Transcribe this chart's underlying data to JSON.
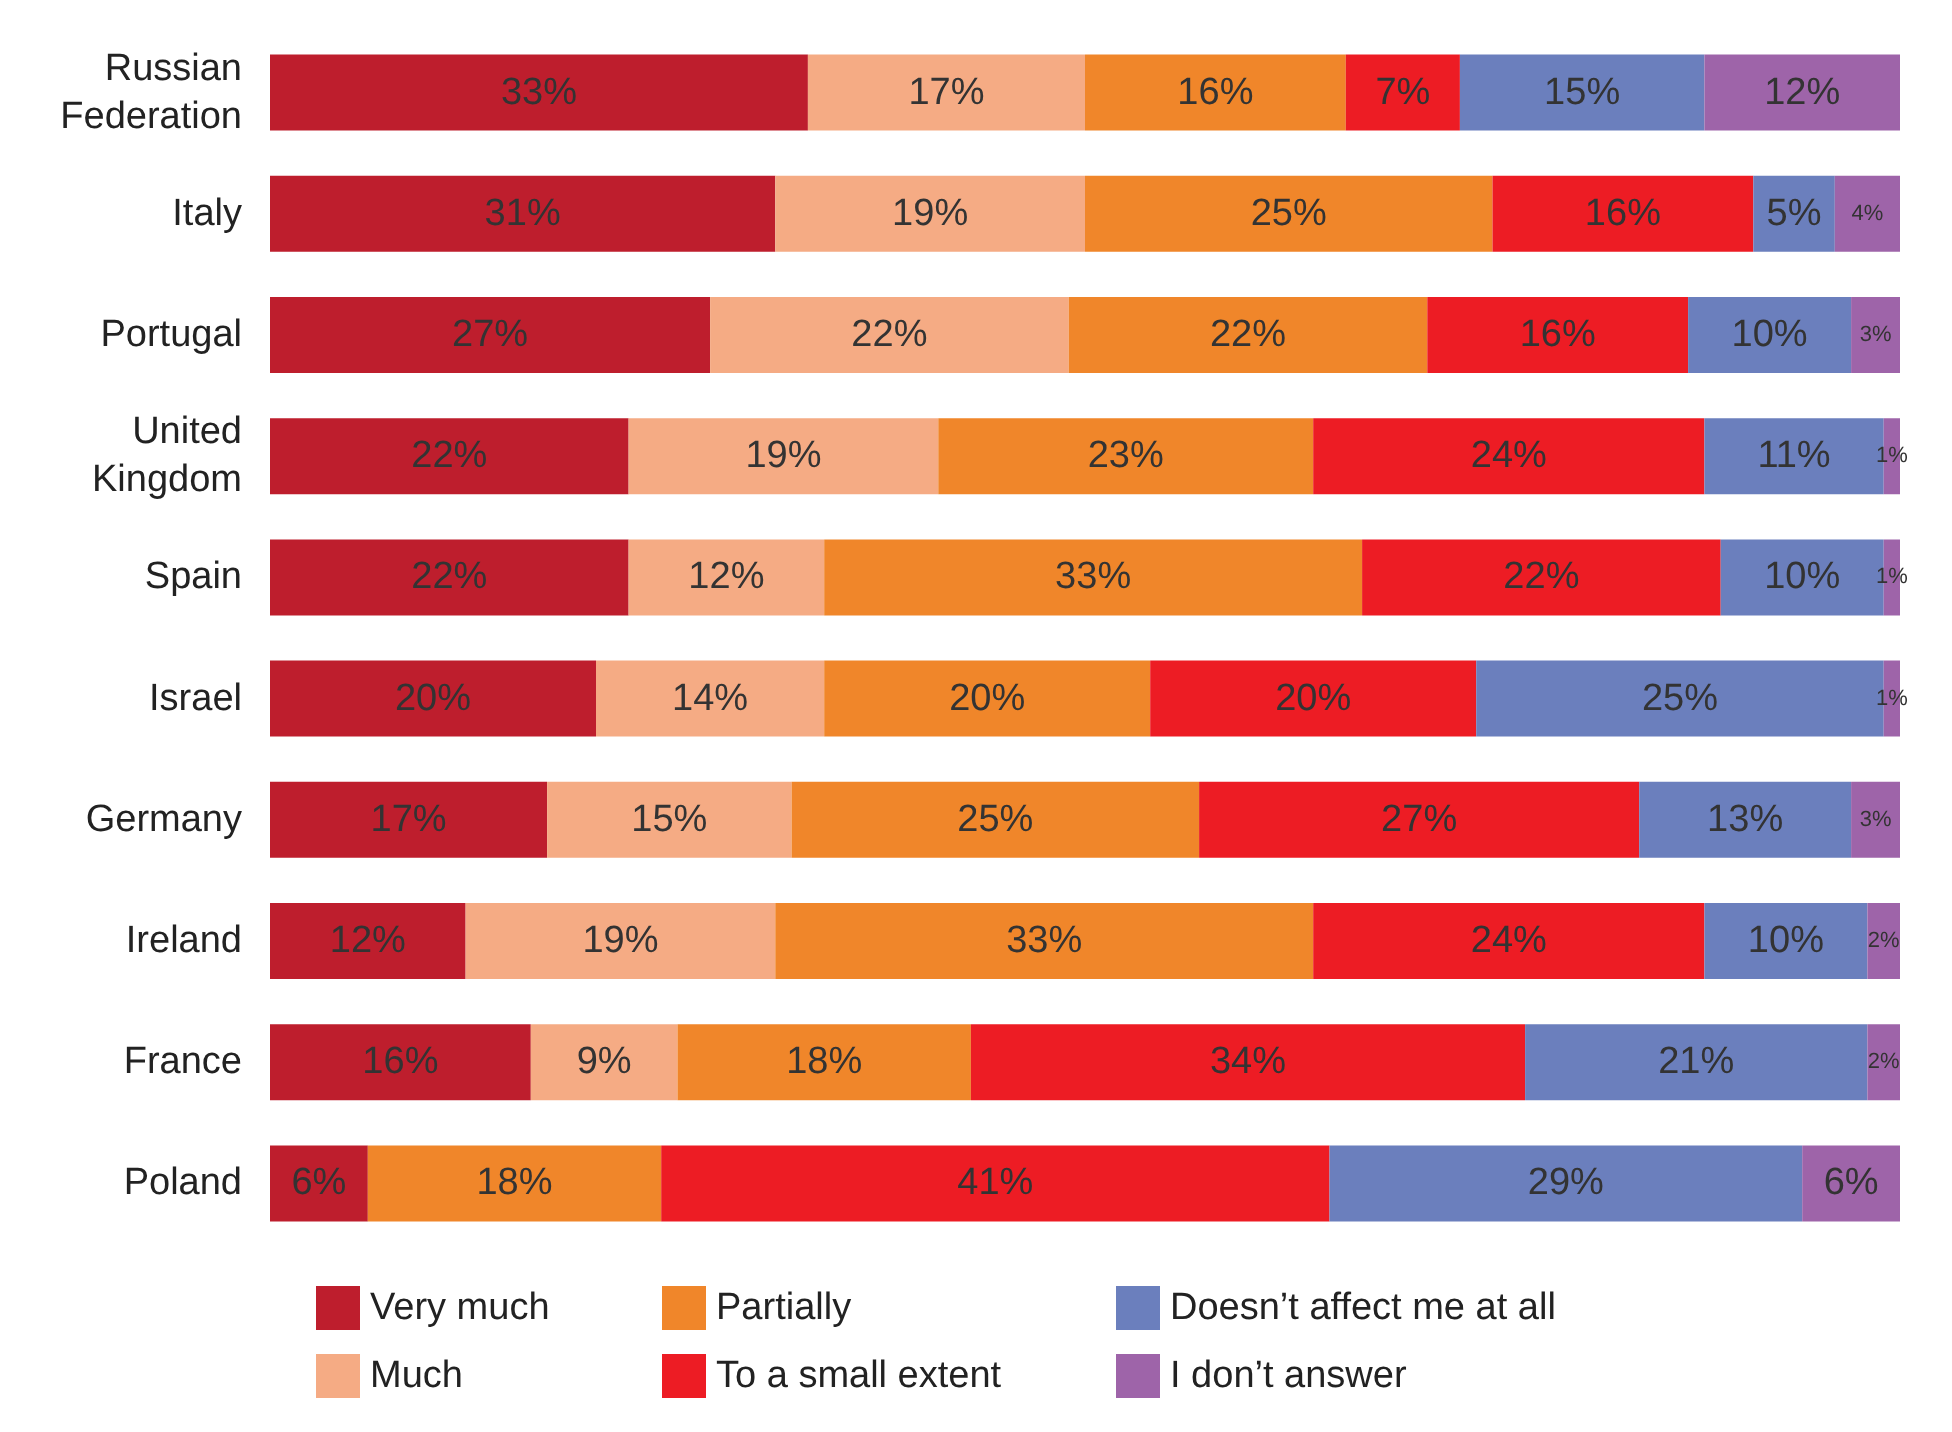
{
  "chart_data": {
    "type": "bar",
    "orientation": "horizontal",
    "stacked": true,
    "categories": [
      "Russian\nFederation",
      "Italy",
      "Portugal",
      "United\nKingdom",
      "Spain",
      "Israel",
      "Germany",
      "Ireland",
      "France",
      "Poland"
    ],
    "xlim": [
      0,
      100
    ],
    "tick_labels": "y",
    "grid": false,
    "legend": "bottom",
    "series": [
      {
        "name": "Very much",
        "color": "#be1e2d",
        "values": [
          33,
          31,
          27,
          22,
          22,
          20,
          17,
          12,
          16,
          6
        ],
        "value_labels": [
          "33%",
          "31%",
          "27%",
          "22%",
          "22%",
          "20%",
          "17%",
          "12%",
          "16%",
          "6%"
        ]
      },
      {
        "name": "Much",
        "color": "#f5ab84",
        "values": [
          17,
          19,
          22,
          19,
          12,
          14,
          15,
          19,
          9,
          null
        ],
        "value_labels": [
          "17%",
          "19%",
          "22%",
          "19%",
          "12%",
          "14%",
          "15%",
          "19%",
          "9%",
          null
        ]
      },
      {
        "name": "Partially",
        "color": "#f0862a",
        "values": [
          16,
          25,
          22,
          23,
          33,
          20,
          25,
          33,
          18,
          18
        ],
        "value_labels": [
          "16%",
          "25%",
          "22%",
          "23%",
          "33%",
          "20%",
          "25%",
          "33%",
          "18%",
          "18%"
        ]
      },
      {
        "name": "To a small extent",
        "color": "#ed1c24",
        "values": [
          7,
          16,
          16,
          24,
          22,
          20,
          27,
          24,
          34,
          41
        ],
        "value_labels": [
          "7%",
          "16%",
          "16%",
          "24%",
          "22%",
          "20%",
          "27%",
          "24%",
          "34%",
          "41%"
        ]
      },
      {
        "name": "Doesn’t affect me at all",
        "color": "#6b7fbd",
        "values": [
          15,
          5,
          10,
          11,
          10,
          25,
          13,
          10,
          21,
          29
        ],
        "value_labels": [
          "15%",
          "5%",
          "10%",
          "11%",
          "10%",
          "25%",
          "13%",
          "10%",
          "21%",
          "29%"
        ]
      },
      {
        "name": "I don’t answer",
        "color": "#9e64a9",
        "values": [
          12,
          4,
          3,
          1,
          1,
          1,
          3,
          2,
          2,
          6
        ],
        "value_labels": [
          "12%",
          "4%",
          "3%",
          "1%",
          "1%",
          "1%",
          "3%",
          "2%",
          "2%",
          "6%"
        ]
      }
    ]
  }
}
